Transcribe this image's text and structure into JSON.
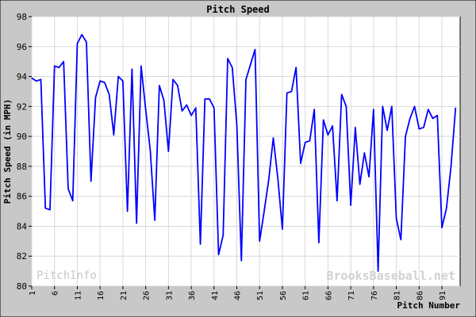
{
  "chart_data": {
    "type": "line",
    "title": "Pitch Speed",
    "xlabel": "Pitch Number",
    "ylabel": "Pitch Speed (in MPH)",
    "xlim": [
      1,
      95
    ],
    "ylim": [
      80,
      98
    ],
    "xticks": [
      "1",
      "6",
      "11",
      "16",
      "21",
      "26",
      "31",
      "36",
      "41",
      "46",
      "51",
      "56",
      "61",
      "66",
      "71",
      "76",
      "81",
      "86",
      "91"
    ],
    "yticks": [
      "80",
      "82",
      "84",
      "86",
      "88",
      "90",
      "92",
      "94",
      "96",
      "98"
    ],
    "grid": true,
    "series": [
      {
        "color": "#0000ff",
        "values": [
          93.9,
          93.7,
          93.8,
          85.2,
          85.1,
          94.7,
          94.6,
          95.0,
          86.5,
          85.7,
          96.2,
          96.8,
          96.3,
          87.0,
          92.6,
          93.7,
          93.6,
          92.8,
          90.1,
          94.0,
          93.7,
          85.0,
          94.5,
          84.2,
          94.7,
          91.8,
          89.1,
          84.4,
          93.4,
          92.4,
          89.0,
          93.8,
          93.4,
          91.7,
          92.1,
          91.4,
          91.9,
          82.8,
          92.5,
          92.5,
          91.9,
          82.1,
          83.4,
          95.2,
          94.6,
          90.8,
          81.7,
          93.8,
          94.8,
          95.8,
          83.0,
          85.0,
          87.1,
          89.9,
          87.2,
          83.8,
          92.9,
          93.0,
          94.6,
          88.2,
          89.6,
          89.7,
          91.8,
          82.9,
          91.1,
          90.1,
          90.7,
          85.7,
          92.8,
          92.0,
          85.4,
          90.6,
          86.8,
          88.9,
          87.3,
          91.8,
          81.0,
          92.0,
          90.4,
          92.0,
          84.5,
          83.1,
          90.0,
          91.2,
          92.0,
          90.5,
          90.6,
          91.8,
          91.2,
          91.4,
          83.9,
          85.2,
          88.0,
          91.9
        ]
      }
    ]
  },
  "watermarks": {
    "left": "PitchInfo",
    "right": "BrooksBaseball.net"
  },
  "colors": {
    "background": "#c8c8c8",
    "plot_background": "#ffffff",
    "grid": "#d8d8d8",
    "line": "#0000ff"
  }
}
